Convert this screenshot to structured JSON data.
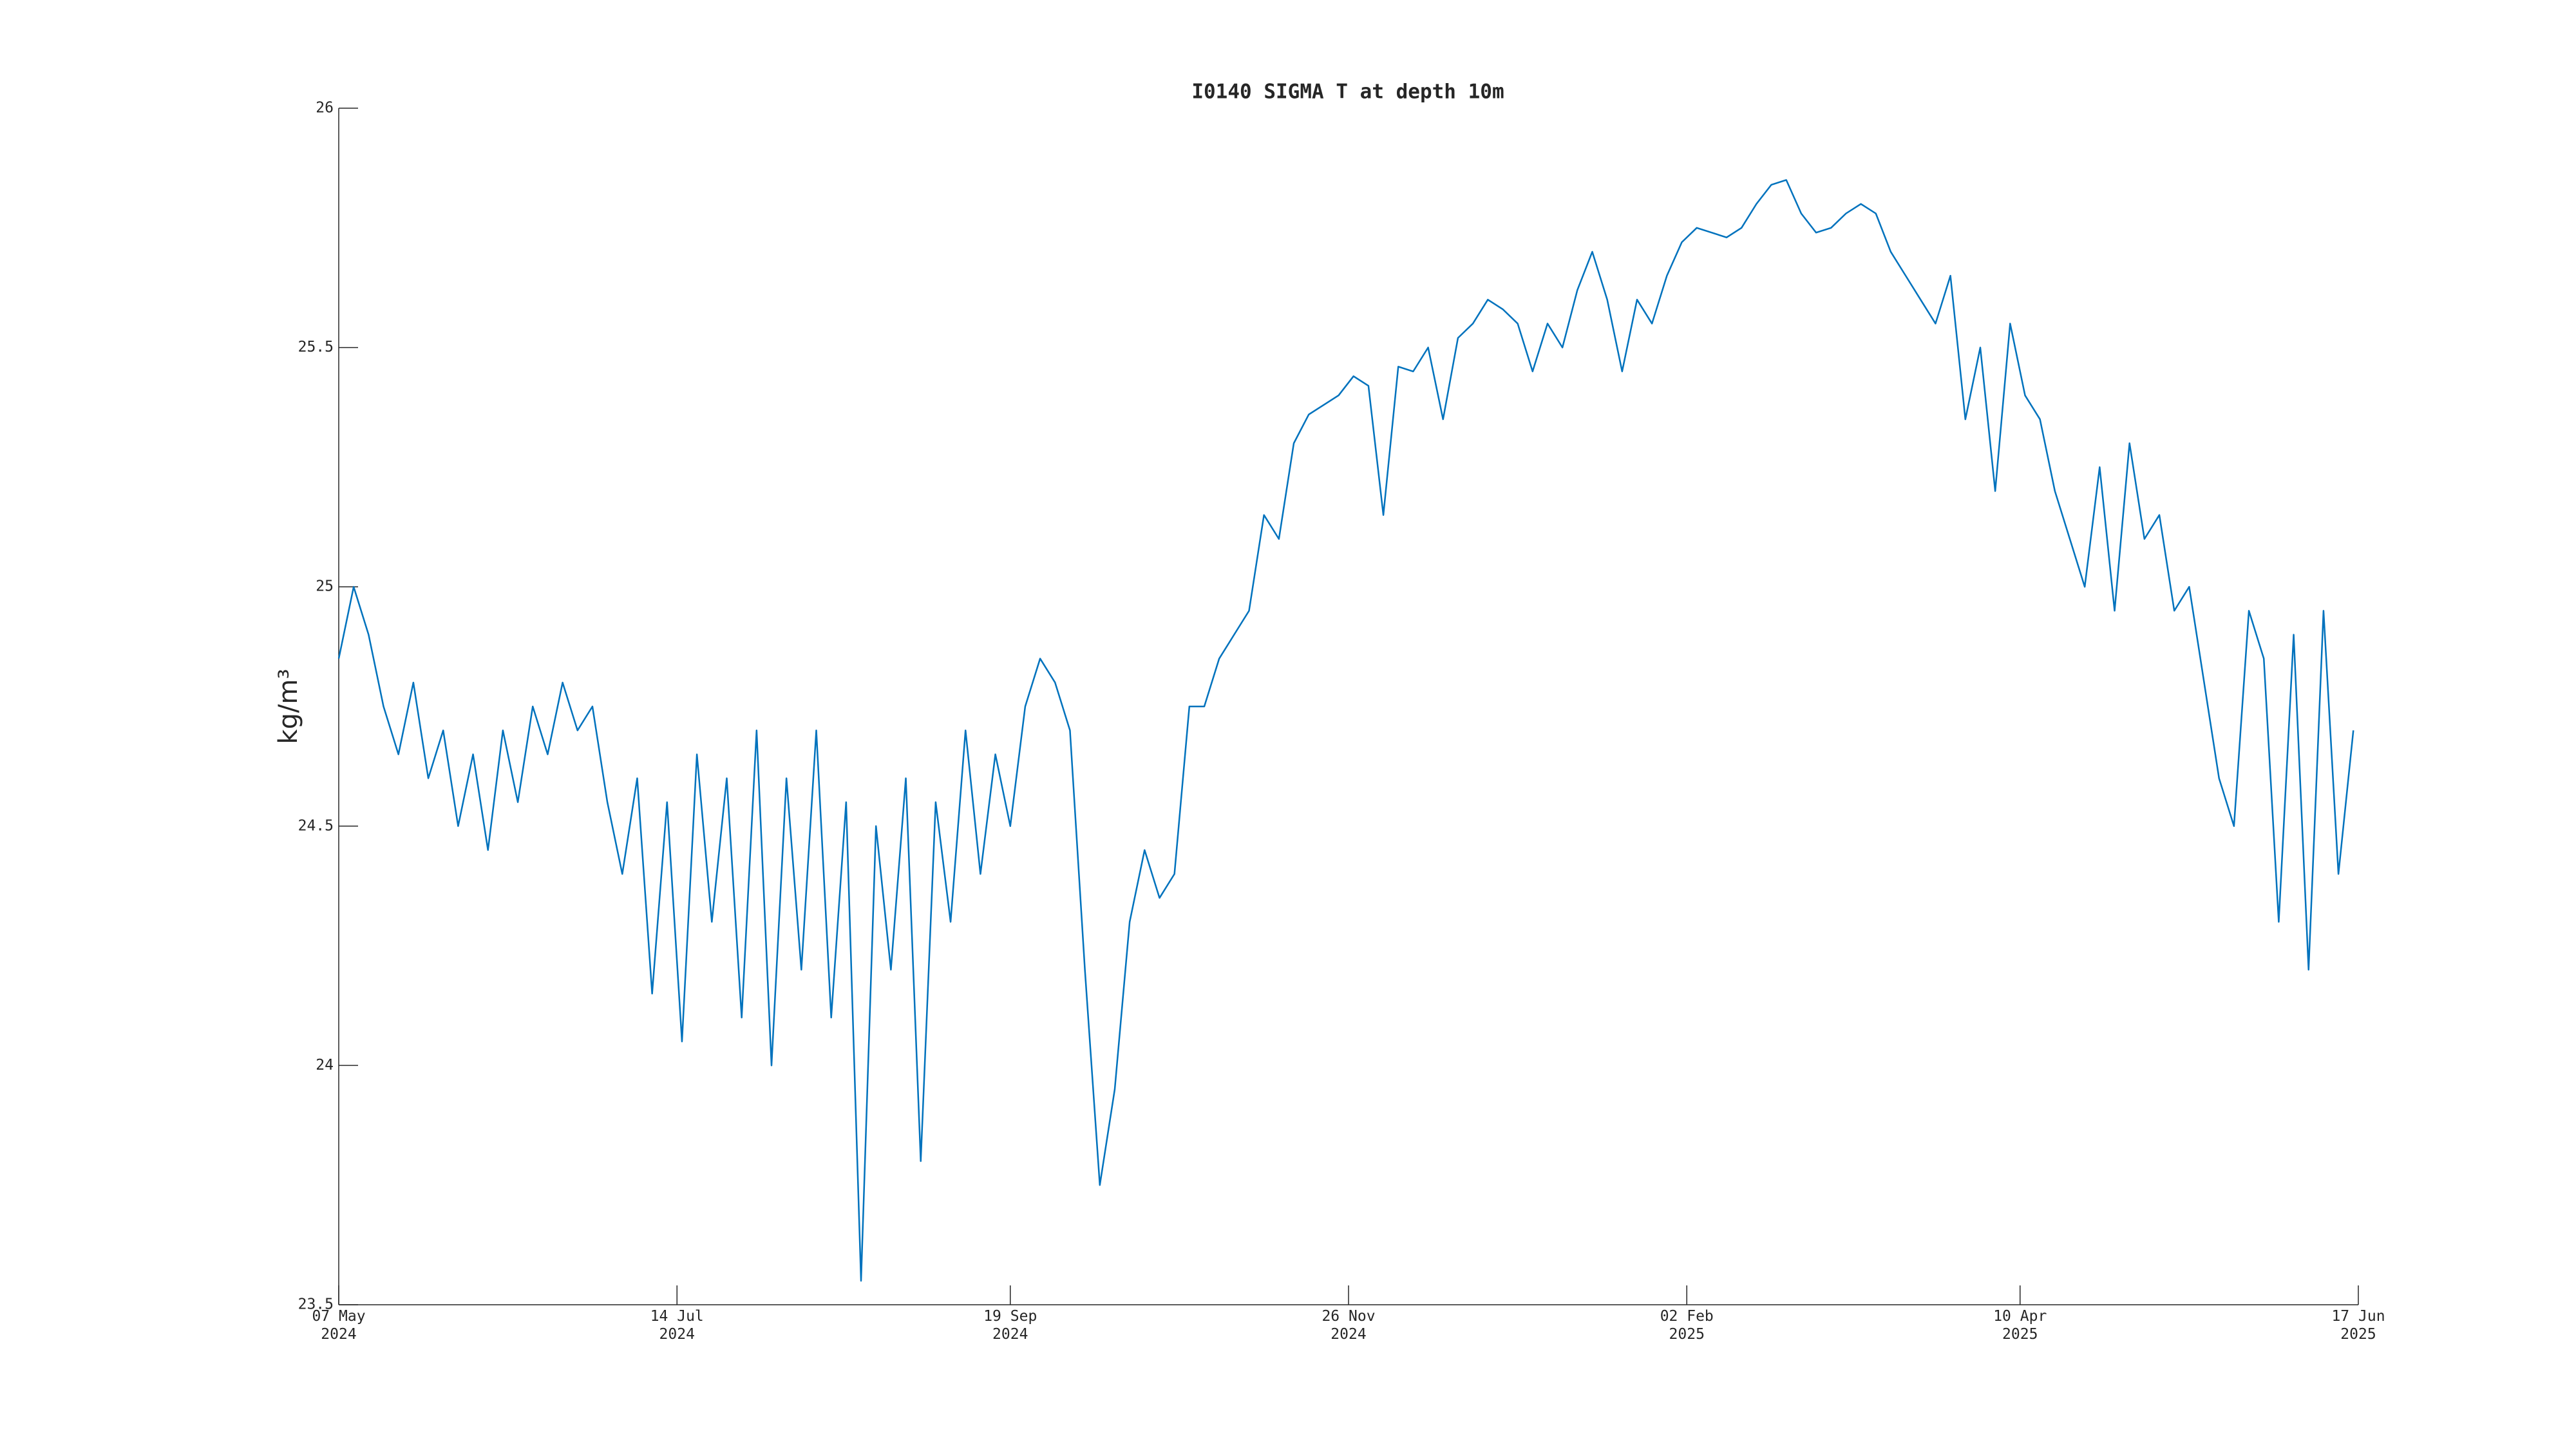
{
  "chart_data": {
    "type": "line",
    "title": "I0140 SIGMA T at depth 10m",
    "y_label": "kg/m³",
    "xlim": [
      "2024-05-07",
      "2025-06-17"
    ],
    "xticks": [
      {
        "value": "2024-05-07",
        "label": "07 May\n2024"
      },
      {
        "value": "2024-07-14",
        "label": "14 Jul\n2024"
      },
      {
        "value": "2024-09-19",
        "label": "19 Sep\n2024"
      },
      {
        "value": "2024-11-26",
        "label": "26 Nov\n2024"
      },
      {
        "value": "2025-02-02",
        "label": "02 Feb\n2025"
      },
      {
        "value": "2025-04-10",
        "label": "10 Apr\n2025"
      },
      {
        "value": "2025-06-17",
        "label": "17 Jun\n2025"
      }
    ],
    "ylim": [
      23.5,
      26
    ],
    "yticks": [
      23.5,
      24,
      24.5,
      25,
      25.5,
      26
    ],
    "x": [
      "2024-05-07",
      "2024-05-10",
      "2024-05-13",
      "2024-05-16",
      "2024-05-19",
      "2024-05-22",
      "2024-05-25",
      "2024-05-28",
      "2024-05-31",
      "2024-06-03",
      "2024-06-06",
      "2024-06-09",
      "2024-06-12",
      "2024-06-15",
      "2024-06-18",
      "2024-06-21",
      "2024-06-24",
      "2024-06-27",
      "2024-06-30",
      "2024-07-03",
      "2024-07-06",
      "2024-07-09",
      "2024-07-12",
      "2024-07-15",
      "2024-07-18",
      "2024-07-21",
      "2024-07-24",
      "2024-07-27",
      "2024-07-30",
      "2024-08-02",
      "2024-08-05",
      "2024-08-08",
      "2024-08-11",
      "2024-08-14",
      "2024-08-17",
      "2024-08-20",
      "2024-08-23",
      "2024-08-26",
      "2024-08-29",
      "2024-09-01",
      "2024-09-04",
      "2024-09-07",
      "2024-09-10",
      "2024-09-13",
      "2024-09-16",
      "2024-09-19",
      "2024-09-22",
      "2024-09-25",
      "2024-09-28",
      "2024-10-01",
      "2024-10-04",
      "2024-10-07",
      "2024-10-10",
      "2024-10-13",
      "2024-10-16",
      "2024-10-19",
      "2024-10-22",
      "2024-10-25",
      "2024-10-28",
      "2024-10-31",
      "2024-11-03",
      "2024-11-06",
      "2024-11-09",
      "2024-11-12",
      "2024-11-15",
      "2024-11-18",
      "2024-11-21",
      "2024-11-24",
      "2024-11-27",
      "2024-11-30",
      "2024-12-03",
      "2024-12-06",
      "2024-12-09",
      "2024-12-12",
      "2024-12-15",
      "2024-12-18",
      "2024-12-21",
      "2024-12-24",
      "2024-12-27",
      "2024-12-30",
      "2025-01-02",
      "2025-01-05",
      "2025-01-08",
      "2025-01-11",
      "2025-01-14",
      "2025-01-17",
      "2025-01-20",
      "2025-01-23",
      "2025-01-26",
      "2025-01-29",
      "2025-02-01",
      "2025-02-04",
      "2025-02-07",
      "2025-02-10",
      "2025-02-13",
      "2025-02-16",
      "2025-02-19",
      "2025-02-22",
      "2025-02-25",
      "2025-02-28",
      "2025-03-03",
      "2025-03-06",
      "2025-03-09",
      "2025-03-12",
      "2025-03-15",
      "2025-03-18",
      "2025-03-21",
      "2025-03-24",
      "2025-03-27",
      "2025-03-30",
      "2025-04-02",
      "2025-04-05",
      "2025-04-08",
      "2025-04-11",
      "2025-04-14",
      "2025-04-17",
      "2025-04-20",
      "2025-04-23",
      "2025-04-26",
      "2025-04-29",
      "2025-05-02",
      "2025-05-05",
      "2025-05-08",
      "2025-05-11",
      "2025-05-14",
      "2025-05-17",
      "2025-05-20",
      "2025-05-23",
      "2025-05-26",
      "2025-05-29",
      "2025-06-01",
      "2025-06-04",
      "2025-06-07",
      "2025-06-10",
      "2025-06-13",
      "2025-06-16"
    ],
    "series": [
      {
        "color": "#0072bd",
        "values": [
          24.85,
          25.0,
          24.9,
          24.75,
          24.65,
          24.8,
          24.6,
          24.7,
          24.5,
          24.65,
          24.45,
          24.7,
          24.55,
          24.75,
          24.65,
          24.8,
          24.7,
          24.75,
          24.55,
          24.4,
          24.6,
          24.15,
          24.55,
          24.05,
          24.65,
          24.3,
          24.6,
          24.1,
          24.7,
          24.0,
          24.6,
          24.2,
          24.7,
          24.1,
          24.55,
          23.55,
          24.5,
          24.2,
          24.6,
          23.8,
          24.55,
          24.3,
          24.7,
          24.4,
          24.65,
          24.5,
          24.75,
          24.85,
          24.8,
          24.7,
          24.2,
          23.75,
          23.95,
          24.3,
          24.45,
          24.35,
          24.4,
          24.75,
          24.75,
          24.85,
          24.9,
          24.95,
          25.15,
          25.1,
          25.3,
          25.36,
          25.38,
          25.4,
          25.44,
          25.42,
          25.15,
          25.46,
          25.45,
          25.5,
          25.35,
          25.52,
          25.55,
          25.6,
          25.58,
          25.55,
          25.45,
          25.55,
          25.5,
          25.62,
          25.7,
          25.6,
          25.45,
          25.6,
          25.55,
          25.65,
          25.72,
          25.75,
          25.74,
          25.73,
          25.75,
          25.8,
          25.84,
          25.85,
          25.78,
          25.74,
          25.75,
          25.78,
          25.8,
          25.78,
          25.7,
          25.65,
          25.6,
          25.55,
          25.65,
          25.35,
          25.5,
          25.2,
          25.55,
          25.4,
          25.35,
          25.2,
          25.1,
          25.0,
          25.25,
          24.95,
          25.3,
          25.1,
          25.15,
          24.95,
          25.0,
          24.8,
          24.6,
          24.5,
          24.95,
          24.85,
          24.3,
          24.9,
          24.2,
          24.95,
          24.4,
          24.7
        ]
      }
    ]
  }
}
